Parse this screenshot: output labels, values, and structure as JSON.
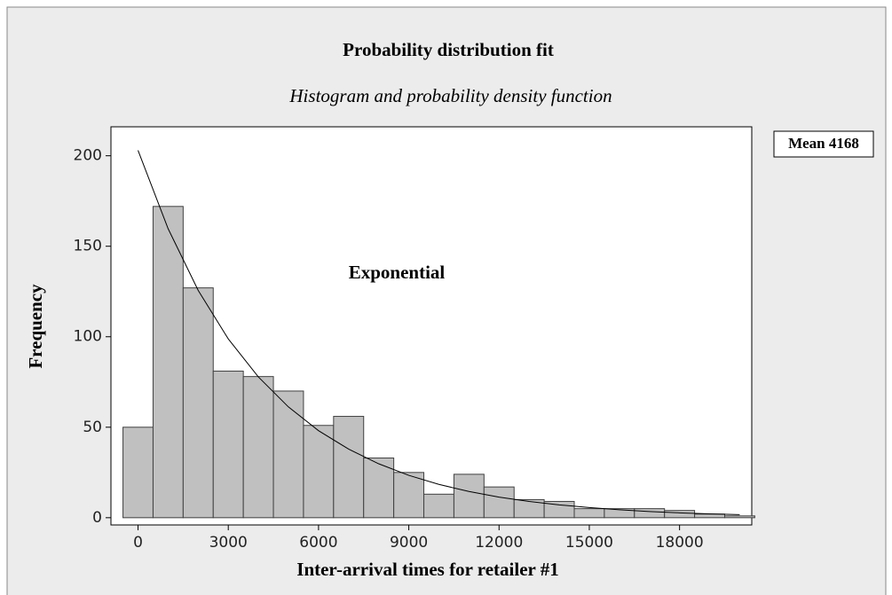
{
  "chart_data": {
    "type": "histogram",
    "title": "Probability distribution fit",
    "subtitle": "Histogram and probability density function",
    "x_label": "Inter-arrival times for retailer #1",
    "y_label": "Frequency",
    "annotation": "Exponential",
    "legend_text": "Mean 4168",
    "bins": [
      -500,
      500,
      1500,
      2500,
      3500,
      4500,
      5500,
      6500,
      7500,
      8500,
      9500,
      10500,
      11500,
      12500,
      13500,
      14500,
      15500,
      16500,
      17500,
      18500,
      19500,
      20500
    ],
    "values": [
      50,
      172,
      127,
      81,
      78,
      70,
      51,
      56,
      33,
      25,
      13,
      24,
      17,
      10,
      9,
      5,
      5,
      5,
      4,
      2,
      1
    ],
    "color": "#c0c0c0",
    "curve": {
      "x": [
        0,
        1000,
        2000,
        3000,
        4000,
        5000,
        6000,
        7000,
        8000,
        9000,
        10000,
        11000,
        12000,
        13000,
        14000,
        15000,
        16000,
        17000,
        18000,
        19000,
        20000
      ],
      "values": [
        203,
        159.7,
        125.6,
        98.8,
        77.8,
        61.2,
        48.1,
        37.9,
        29.8,
        23.4,
        18.4,
        14.5,
        11.4,
        9.0,
        7.1,
        5.6,
        4.4,
        3.4,
        2.7,
        2.1,
        1.7
      ],
      "color": "#000000"
    },
    "xlim": [
      -900,
      20400
    ],
    "ylim": [
      -4,
      216
    ],
    "xticks": [
      0,
      3000,
      6000,
      9000,
      12000,
      15000,
      18000
    ],
    "yticks": [
      0,
      50,
      100,
      150,
      200
    ]
  }
}
